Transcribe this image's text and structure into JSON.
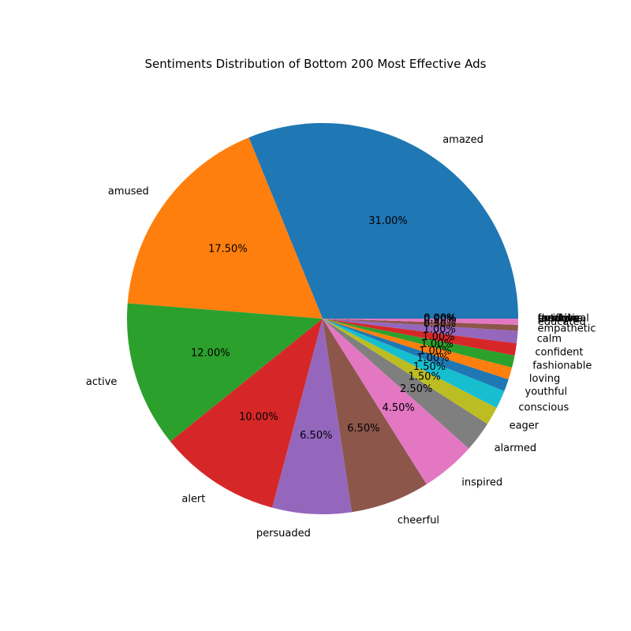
{
  "chart_data": {
    "type": "pie",
    "title": "Sentiments Distribution of Bottom 200 Most Effective Ads",
    "categories": [
      "amazed",
      "amused",
      "active",
      "alert",
      "persuaded",
      "cheerful",
      "inspired",
      "alarmed",
      "eager",
      "conscious",
      "youthful",
      "loving",
      "fashionable",
      "confident",
      "calm",
      "empathetic",
      "educated",
      "creative",
      "feminine",
      "thrifty",
      "fearful",
      "emotional",
      "fun",
      "patriotic"
    ],
    "values": [
      31.0,
      17.5,
      12.0,
      10.0,
      6.5,
      6.5,
      4.5,
      2.5,
      1.5,
      1.5,
      1.0,
      1.0,
      1.0,
      1.0,
      1.0,
      0.5,
      0.5,
      0.0,
      0.0,
      0.0,
      0.0,
      0.0,
      0.0,
      0.0
    ],
    "percent_labels": [
      "31.00%",
      "17.50%",
      "12.00%",
      "10.00%",
      "6.50%",
      "6.50%",
      "4.50%",
      "2.50%",
      "1.50%",
      "1.50%",
      "1.00%",
      "1.00%",
      "1.00%",
      "1.00%",
      "1.00%",
      "0.50%",
      "0.50%",
      "0.00%",
      "0.00%",
      "0.00%",
      "0.00%",
      "0.00%",
      "0.00%",
      "0.00%"
    ],
    "colors": [
      "#1f77b4",
      "#ff7f0e",
      "#2ca02c",
      "#d62728",
      "#9467bd",
      "#8c564b",
      "#e377c2",
      "#7f7f7f",
      "#bcbd22",
      "#17becf",
      "#1f77b4",
      "#ff7f0e",
      "#2ca02c",
      "#d62728",
      "#9467bd",
      "#8c564b",
      "#e377c2",
      "#7f7f7f",
      "#bcbd22",
      "#17becf",
      "#1f77b4",
      "#ff7f0e",
      "#2ca02c",
      "#d62728"
    ],
    "start_angle_deg": 0,
    "direction": "counterclockwise",
    "legend": "none"
  }
}
